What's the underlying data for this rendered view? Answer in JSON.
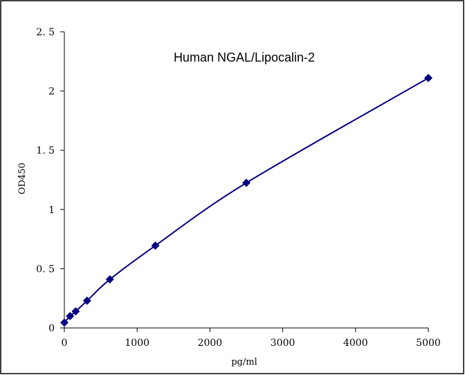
{
  "chart_data": {
    "type": "scatter",
    "title": "Human   NGAL/Lipocalin-2",
    "xlabel": "pg/ml",
    "ylabel": "OD450",
    "xlim": [
      0,
      5000
    ],
    "ylim": [
      0,
      2.5
    ],
    "x_ticks": [
      0,
      1000,
      2000,
      3000,
      4000,
      5000
    ],
    "x_tick_labels": [
      "0",
      "1000",
      "2000",
      "3000",
      "4000",
      "5000"
    ],
    "y_ticks": [
      0,
      0.5,
      1,
      1.5,
      2,
      2.5
    ],
    "y_tick_labels": [
      "0",
      "0. 5",
      "1",
      "1. 5",
      "2",
      "2. 5"
    ],
    "grid": false,
    "series": [
      {
        "color": "#000080",
        "marker": "diamond",
        "line": "smooth",
        "points": [
          {
            "x": 0,
            "y": 0.045
          },
          {
            "x": 78,
            "y": 0.1
          },
          {
            "x": 156,
            "y": 0.14
          },
          {
            "x": 312,
            "y": 0.23
          },
          {
            "x": 625,
            "y": 0.41
          },
          {
            "x": 1250,
            "y": 0.695
          },
          {
            "x": 2500,
            "y": 1.225
          },
          {
            "x": 5000,
            "y": 2.11
          }
        ]
      }
    ]
  }
}
